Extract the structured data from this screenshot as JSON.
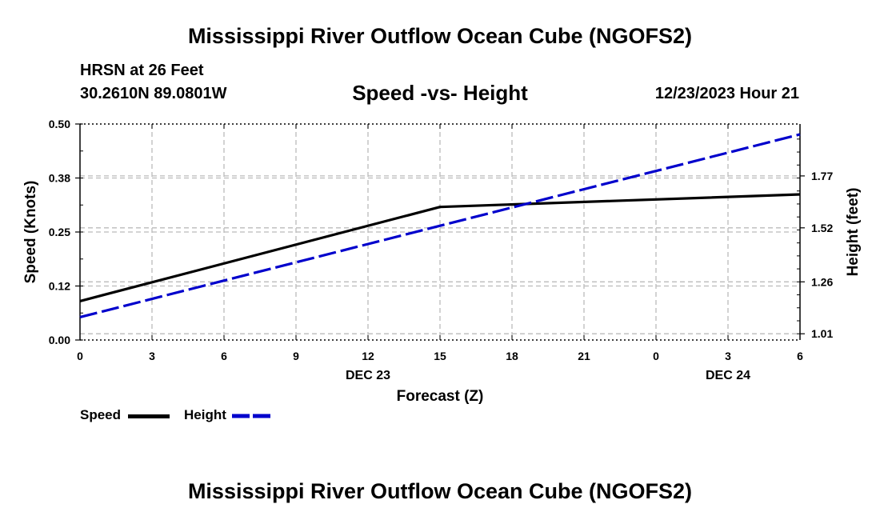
{
  "header": {
    "title": "Mississippi River Outflow Ocean Cube (NGOFS2)",
    "station": "HRSN at 26 Feet",
    "coords": "30.2610N  89.0801W",
    "subtitle": "Speed -vs- Height",
    "datetime": "12/23/2023 Hour 21"
  },
  "footer": {
    "title": "Mississippi River Outflow Ocean Cube (NGOFS2)"
  },
  "legend": {
    "speed": "Speed",
    "height": "Height"
  },
  "colors": {
    "speed": "#000000",
    "height": "#0000cc",
    "grid": "#bbbbbb"
  },
  "chart_data": {
    "type": "line",
    "x": [
      0,
      3,
      6,
      9,
      12,
      15,
      18,
      21,
      24,
      27,
      30
    ],
    "x_tick_labels": [
      "0",
      "3",
      "6",
      "9",
      "12",
      "15",
      "18",
      "21",
      "0",
      "3",
      "6"
    ],
    "x_date_labels": [
      {
        "x": 12,
        "label": "DEC 23"
      },
      {
        "x": 27,
        "label": "DEC 24"
      }
    ],
    "xlabel": "Forecast (Z)",
    "xlim": [
      0,
      30
    ],
    "left_axis": {
      "label": "Speed (Knots)",
      "ylim": [
        0,
        0.5
      ],
      "ticks": [
        0.0,
        0.125,
        0.25,
        0.375,
        0.5
      ],
      "tick_labels": [
        "0.00",
        "0.12",
        "0.25",
        "0.38",
        "0.50"
      ]
    },
    "right_axis": {
      "label": "Height (feet)",
      "ylim": [
        0.98,
        2.02
      ],
      "ticks": [
        1.01,
        1.26,
        1.52,
        1.77
      ],
      "tick_labels": [
        "1.01",
        "1.26",
        "1.52",
        "1.77"
      ]
    },
    "grid": true,
    "series": [
      {
        "name": "Speed",
        "axis": "left",
        "style": "solid",
        "x": [
          0,
          15,
          30
        ],
        "values": [
          0.09,
          0.308,
          0.337
        ]
      },
      {
        "name": "Height",
        "axis": "right",
        "style": "dashed",
        "x": [
          0,
          30
        ],
        "values": [
          1.09,
          1.97
        ]
      }
    ]
  }
}
